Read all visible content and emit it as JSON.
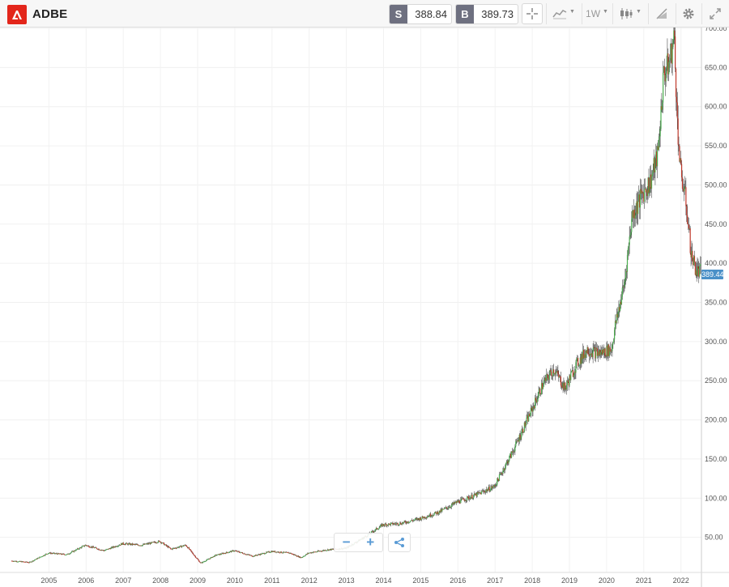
{
  "toolbar": {
    "symbol": "ADBE",
    "sell": {
      "tag": "S",
      "price": "388.84"
    },
    "buy": {
      "tag": "B",
      "price": "389.73"
    },
    "interval": "1W",
    "accent_sell_buy": "#6e7080",
    "brand_color": "#e3261b",
    "icons": [
      "adobe-logo-icon",
      "crosshair-icon",
      "chart-type-icon",
      "candle-style-icon",
      "drawing-tools-icon",
      "settings-icon",
      "fullscreen-icon"
    ]
  },
  "chart": {
    "last_price_label": "389.44",
    "zoom_out_label": "−",
    "zoom_in_label": "+",
    "share_icon": "share-icon"
  },
  "chart_data": {
    "type": "line",
    "style": "candlestick",
    "up_color": "#4caf50",
    "down_color": "#c0392b",
    "y_ticks": [
      "50.00",
      "100.00",
      "150.00",
      "200.00",
      "250.00",
      "300.00",
      "350.00",
      "400.00",
      "450.00",
      "500.00",
      "550.00",
      "600.00",
      "650.00",
      "700.00"
    ],
    "ylim": [
      0,
      700
    ],
    "x_ticks": [
      "2005",
      "2006",
      "2007",
      "2008",
      "2009",
      "2010",
      "2011",
      "2012",
      "2013",
      "2014",
      "2015",
      "2016",
      "2017",
      "2018",
      "2019",
      "2020",
      "2021",
      "2022"
    ],
    "xlim": [
      2004.0,
      2022.55
    ],
    "grid": true,
    "x": [
      2004.0,
      2004.5,
      2005.0,
      2005.5,
      2006.0,
      2006.5,
      2007.0,
      2007.5,
      2008.0,
      2008.3,
      2008.7,
      2009.1,
      2009.5,
      2010.0,
      2010.5,
      2011.0,
      2011.5,
      2011.8,
      2012.0,
      2012.5,
      2013.0,
      2013.5,
      2014.0,
      2014.5,
      2015.0,
      2015.5,
      2016.0,
      2016.5,
      2017.0,
      2017.5,
      2018.0,
      2018.3,
      2018.6,
      2018.9,
      2019.2,
      2019.5,
      2019.8,
      2020.15,
      2020.25,
      2020.5,
      2020.7,
      2020.9,
      2021.0,
      2021.2,
      2021.4,
      2021.55,
      2021.7,
      2021.85,
      2021.9,
      2022.0,
      2022.15,
      2022.3,
      2022.45
    ],
    "y": [
      20,
      18,
      30,
      28,
      40,
      33,
      42,
      40,
      45,
      35,
      40,
      17,
      27,
      33,
      26,
      32,
      30,
      24,
      30,
      34,
      36,
      50,
      66,
      68,
      74,
      82,
      95,
      104,
      115,
      160,
      212,
      245,
      265,
      240,
      270,
      290,
      285,
      290,
      320,
      375,
      460,
      480,
      490,
      505,
      540,
      640,
      655,
      690,
      600,
      520,
      480,
      410,
      389
    ]
  }
}
